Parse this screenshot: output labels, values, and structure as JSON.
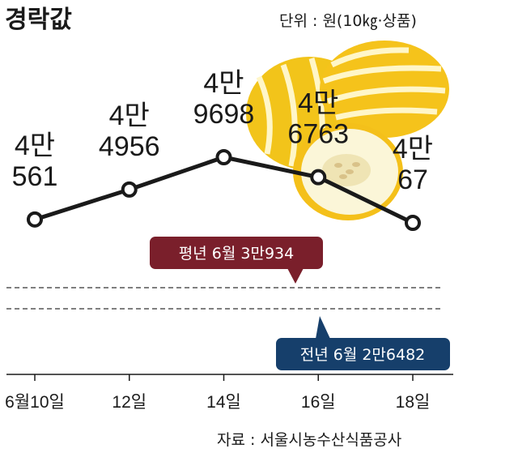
{
  "title": "경락값",
  "unit": "단위 : 원(10㎏·상품)",
  "source": "자료 : 서울시농수산식품공사",
  "colors": {
    "line": "#1a1a1a",
    "avg_badge": "#7a1f2b",
    "prev_badge": "#163f6b",
    "ref_line": "#555555"
  },
  "chart_data": {
    "type": "line",
    "categories": [
      "6월10일",
      "12일",
      "14일",
      "16일",
      "18일"
    ],
    "series": [
      {
        "values": [
          40561,
          44956,
          49698,
          46763,
          40067
        ]
      }
    ],
    "data_labels": [
      [
        "4만",
        "561"
      ],
      [
        "4만",
        "4956"
      ],
      [
        "4만",
        "9698"
      ],
      [
        "4만",
        "6763"
      ],
      [
        "4만",
        "67"
      ]
    ],
    "reference_lines": [
      {
        "label": "평년 6월 3만934",
        "value": 30934
      },
      {
        "label": "전년 6월 2만6482",
        "value": 26482
      }
    ],
    "grid": false,
    "legend": "none"
  }
}
